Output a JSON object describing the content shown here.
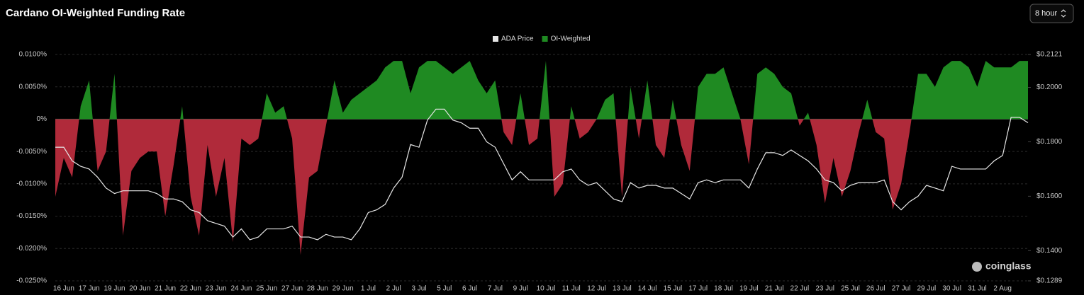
{
  "chart_data": {
    "type": "area",
    "title": "Cardano OI-Weighted Funding Rate",
    "categories": [
      null,
      "16 Jun",
      null,
      null,
      "17 Jun",
      null,
      null,
      "19 Jun",
      null,
      null,
      "20 Jun",
      null,
      null,
      "21 Jun",
      null,
      null,
      "22 Jun",
      null,
      null,
      "23 Jun",
      null,
      null,
      "24 Jun",
      null,
      null,
      "25 Jun",
      null,
      null,
      "27 Jun",
      null,
      null,
      "28 Jun",
      null,
      null,
      "29 Jun",
      null,
      null,
      "1 Jul",
      null,
      null,
      "2 Jul",
      null,
      null,
      "3 Jul",
      null,
      null,
      "5 Jul",
      null,
      null,
      "6 Jul",
      null,
      null,
      "7 Jul",
      null,
      null,
      "9 Jul",
      null,
      null,
      "10 Jul",
      null,
      null,
      "11 Jul",
      null,
      null,
      "12 Jul",
      null,
      null,
      "13 Jul",
      null,
      null,
      "14 Jul",
      null,
      null,
      "15 Jul",
      null,
      null,
      "17 Jul",
      null,
      null,
      "18 Jul",
      null,
      null,
      "19 Jul",
      null,
      null,
      "21 Jul",
      null,
      null,
      "22 Jul",
      null,
      null,
      "23 Jul",
      null,
      null,
      "25 Jul",
      null,
      null,
      "26 Jul",
      null,
      null,
      "27 Jul",
      null,
      null,
      "29 Jul",
      null,
      null,
      "30 Jul",
      null,
      null,
      "31 Jul",
      null,
      null,
      "2 Aug",
      null,
      null,
      null
    ],
    "series": [
      {
        "name": "ADA Price",
        "type": "line",
        "axis": "y2",
        "color": "#e6e6e6",
        "values": [
          0.178,
          0.178,
          0.173,
          0.171,
          0.17,
          0.167,
          0.163,
          0.161,
          0.162,
          0.162,
          0.162,
          0.162,
          0.161,
          0.159,
          0.159,
          0.158,
          0.155,
          0.154,
          0.151,
          0.15,
          0.149,
          0.145,
          0.148,
          0.144,
          0.145,
          0.148,
          0.148,
          0.148,
          0.149,
          0.145,
          0.145,
          0.144,
          0.146,
          0.145,
          0.145,
          0.144,
          0.148,
          0.154,
          0.155,
          0.157,
          0.163,
          0.167,
          0.179,
          0.178,
          0.188,
          0.192,
          0.192,
          0.188,
          0.187,
          0.185,
          0.185,
          0.18,
          0.178,
          0.172,
          0.166,
          0.169,
          0.166,
          0.166,
          0.166,
          0.166,
          0.169,
          0.17,
          0.166,
          0.164,
          0.165,
          0.162,
          0.159,
          0.158,
          0.165,
          0.163,
          0.164,
          0.164,
          0.163,
          0.163,
          0.161,
          0.159,
          0.165,
          0.166,
          0.165,
          0.166,
          0.166,
          0.166,
          0.163,
          0.17,
          0.176,
          0.176,
          0.175,
          0.177,
          0.175,
          0.173,
          0.17,
          0.166,
          0.165,
          0.162,
          0.164,
          0.165,
          0.165,
          0.165,
          0.166,
          0.158,
          0.155,
          0.158,
          0.16,
          0.164,
          0.163,
          0.162,
          0.171,
          0.17,
          0.17,
          0.17,
          0.17,
          0.173,
          0.175,
          0.189,
          0.189,
          0.187
        ]
      },
      {
        "name": "OI-Weighted",
        "type": "area",
        "color": "#1f8a22",
        "negative_color": "#b02a3a",
        "values": [
          -0.012,
          -0.006,
          -0.009,
          0.002,
          0.006,
          -0.008,
          -0.005,
          0.007,
          -0.018,
          -0.008,
          -0.006,
          -0.005,
          -0.005,
          -0.015,
          -0.007,
          0.002,
          -0.012,
          -0.018,
          -0.004,
          -0.012,
          -0.006,
          -0.019,
          -0.003,
          -0.004,
          -0.003,
          0.004,
          0.001,
          0.002,
          -0.003,
          -0.021,
          -0.009,
          -0.008,
          -0.001,
          0.006,
          0.001,
          0.003,
          0.004,
          0.005,
          0.006,
          0.008,
          0.009,
          0.009,
          0.004,
          0.008,
          0.009,
          0.009,
          0.008,
          0.007,
          0.008,
          0.009,
          0.006,
          0.004,
          0.006,
          -0.002,
          -0.004,
          0.004,
          -0.004,
          -0.003,
          0.009,
          -0.012,
          -0.01,
          0.002,
          -0.003,
          -0.002,
          0.0,
          0.003,
          0.004,
          -0.012,
          0.005,
          -0.003,
          0.006,
          -0.004,
          -0.006,
          0.003,
          -0.004,
          -0.008,
          0.005,
          0.007,
          0.007,
          0.008,
          0.004,
          0.0,
          -0.007,
          0.007,
          0.008,
          0.007,
          0.005,
          0.004,
          -0.001,
          0.001,
          -0.004,
          -0.013,
          -0.006,
          -0.012,
          -0.008,
          -0.002,
          0.003,
          -0.002,
          -0.003,
          -0.014,
          -0.01,
          -0.002,
          0.007,
          0.007,
          0.005,
          0.008,
          0.009,
          0.009,
          0.008,
          0.005,
          0.009,
          0.008,
          0.008,
          0.008,
          0.009,
          0.009
        ]
      }
    ],
    "ylim": [
      -0.025,
      0.01
    ],
    "yticks": [
      {
        "value": 0.01,
        "label": "0.0100%"
      },
      {
        "value": 0.005,
        "label": "0.0050%"
      },
      {
        "value": 0,
        "label": "0%"
      },
      {
        "value": -0.005,
        "label": "-0.0050%"
      },
      {
        "value": -0.01,
        "label": "-0.0100%"
      },
      {
        "value": -0.015,
        "label": "-0.0150%"
      },
      {
        "value": -0.02,
        "label": "-0.0200%"
      },
      {
        "value": -0.025,
        "label": "-0.0250%"
      }
    ],
    "y2lim": [
      0.1289,
      0.2121
    ],
    "y2ticks": [
      {
        "value": 0.2121,
        "label": "$0.2121"
      },
      {
        "value": 0.2,
        "label": "$0.2000"
      },
      {
        "value": 0.18,
        "label": "$0.1800"
      },
      {
        "value": 0.16,
        "label": "$0.1600"
      },
      {
        "value": 0.14,
        "label": "$0.1400"
      },
      {
        "value": 0.1289,
        "label": "$0.1289"
      }
    ],
    "grid": true
  },
  "interval": "8 hour",
  "watermark": "coinglass"
}
